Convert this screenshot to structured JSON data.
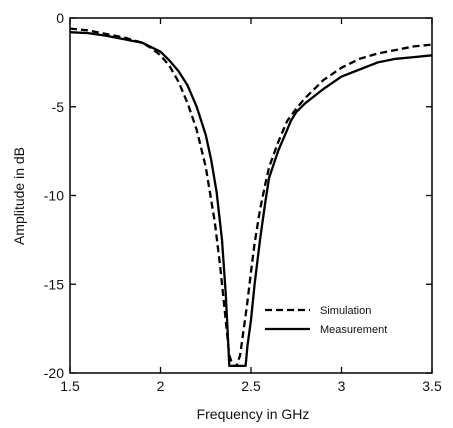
{
  "chart_data": {
    "type": "line",
    "title": "",
    "xlabel": "Frequency in GHz",
    "ylabel": "Amplitude in dB",
    "xlim": [
      1.5,
      3.5
    ],
    "ylim": [
      -20,
      0
    ],
    "xticks": [
      1.5,
      2,
      2.5,
      3,
      3.5
    ],
    "xtick_labels": [
      "1.5",
      "2",
      "2.5",
      "3",
      "3.5"
    ],
    "yticks": [
      0,
      -5,
      -10,
      -15,
      -20
    ],
    "ytick_labels": [
      "0",
      "-5",
      "-10",
      "-15",
      "-20"
    ],
    "grid": false,
    "legend_position": "bottom-right",
    "series": [
      {
        "name": "Simulation",
        "style": "dashed",
        "color": "#000000",
        "x": [
          1.5,
          1.6,
          1.7,
          1.8,
          1.9,
          1.95,
          2.0,
          2.05,
          2.1,
          2.15,
          2.2,
          2.25,
          2.3,
          2.33,
          2.36,
          2.38,
          2.4,
          2.42,
          2.44,
          2.46,
          2.48,
          2.5,
          2.52,
          2.55,
          2.58,
          2.6,
          2.65,
          2.7,
          2.75,
          2.8,
          2.9,
          3.0,
          3.1,
          3.2,
          3.3,
          3.4,
          3.5
        ],
        "y": [
          -0.6,
          -0.7,
          -0.9,
          -1.1,
          -1.4,
          -1.7,
          -2.1,
          -2.7,
          -3.6,
          -4.8,
          -6.3,
          -8.4,
          -11.5,
          -14.0,
          -17.0,
          -19.0,
          -19.6,
          -19.6,
          -19.0,
          -17.5,
          -16.0,
          -14.3,
          -12.7,
          -10.8,
          -9.3,
          -8.4,
          -7.0,
          -5.8,
          -5.1,
          -4.5,
          -3.5,
          -2.8,
          -2.3,
          -2.0,
          -1.8,
          -1.6,
          -1.5
        ]
      },
      {
        "name": "Measurement",
        "style": "solid",
        "color": "#000000",
        "x": [
          1.5,
          1.6,
          1.7,
          1.8,
          1.9,
          2.0,
          2.05,
          2.1,
          2.15,
          2.2,
          2.25,
          2.28,
          2.31,
          2.34,
          2.36,
          2.37,
          2.38,
          2.4,
          2.42,
          2.44,
          2.46,
          2.47,
          2.48,
          2.5,
          2.52,
          2.55,
          2.58,
          2.6,
          2.65,
          2.7,
          2.72,
          2.75,
          2.8,
          2.9,
          3.0,
          3.1,
          3.2,
          3.3,
          3.4,
          3.5
        ],
        "y": [
          -0.8,
          -0.85,
          -1.0,
          -1.2,
          -1.4,
          -1.9,
          -2.4,
          -3.0,
          -3.8,
          -5.0,
          -6.6,
          -8.0,
          -9.8,
          -12.5,
          -15.5,
          -17.5,
          -19.6,
          -19.6,
          -19.6,
          -19.6,
          -19.6,
          -19.6,
          -18.5,
          -17.0,
          -15.0,
          -12.5,
          -10.3,
          -9.0,
          -7.5,
          -6.3,
          -5.8,
          -5.3,
          -4.8,
          -4.0,
          -3.3,
          -2.9,
          -2.5,
          -2.3,
          -2.2,
          -2.1
        ]
      }
    ]
  }
}
